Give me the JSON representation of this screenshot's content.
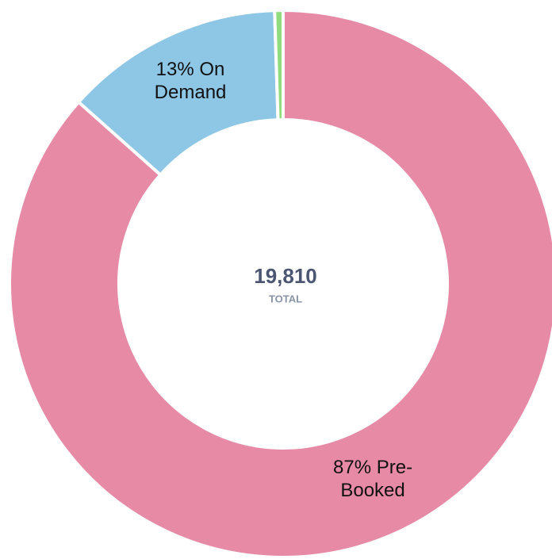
{
  "chart_data": {
    "type": "doughnut",
    "categories": [
      "Pre-Booked",
      "On Demand",
      null
    ],
    "values": [
      87,
      13,
      0.5
    ],
    "value_labels": [
      "87%",
      "13%",
      null
    ],
    "colors": [
      "#e68aa6",
      "#8ec6e6",
      "#8fdc7f"
    ],
    "center_value": "19,810",
    "center_label": "TOTAL"
  }
}
